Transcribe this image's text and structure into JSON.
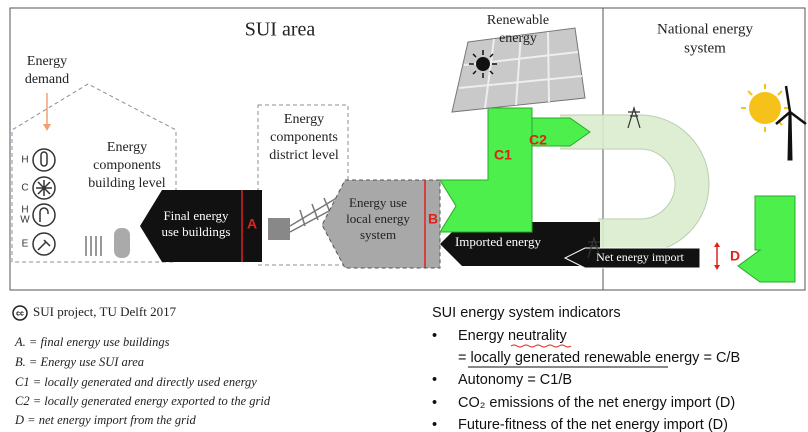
{
  "sui_area_title": "SUI area",
  "national_title": [
    "National energy",
    "system"
  ],
  "renewable_label": [
    "Renewable",
    "energy"
  ],
  "energy_demand": [
    "Energy",
    "demand"
  ],
  "icon_letters": [
    "H",
    "C",
    "H",
    "W",
    "E"
  ],
  "building_label": [
    "Energy",
    "components",
    "building level"
  ],
  "district_label": [
    "Energy",
    "components",
    "district level"
  ],
  "final_energy": [
    "Final energy",
    "use buildings"
  ],
  "local_energy": [
    "Energy use",
    "local energy",
    "system"
  ],
  "markers": {
    "a": "A",
    "b": "B",
    "c1": "C1",
    "c2": "C2",
    "d": "D"
  },
  "imported": "Imported energy",
  "net_import": "Net energy import",
  "credit": {
    "icon": "cc",
    "text": "SUI project, TU Delft 2017"
  },
  "legend": [
    "A.  = final energy use buildings",
    "B.  = Energy use SUI area",
    "C1  =  locally generated and directly used energy",
    "C2  = locally generated energy exported to the grid",
    "D    = net energy import from the grid"
  ],
  "indicators": {
    "title": "SUI energy system indicators",
    "items": [
      [
        "Energy neutrality",
        "= locally generated renewable energy =  C/B"
      ],
      [
        "Autonomy = C1/B"
      ],
      [
        "CO₂ emissions of the net energy import (D)"
      ],
      [
        "Future-fitness of the net energy import (D)"
      ]
    ]
  }
}
